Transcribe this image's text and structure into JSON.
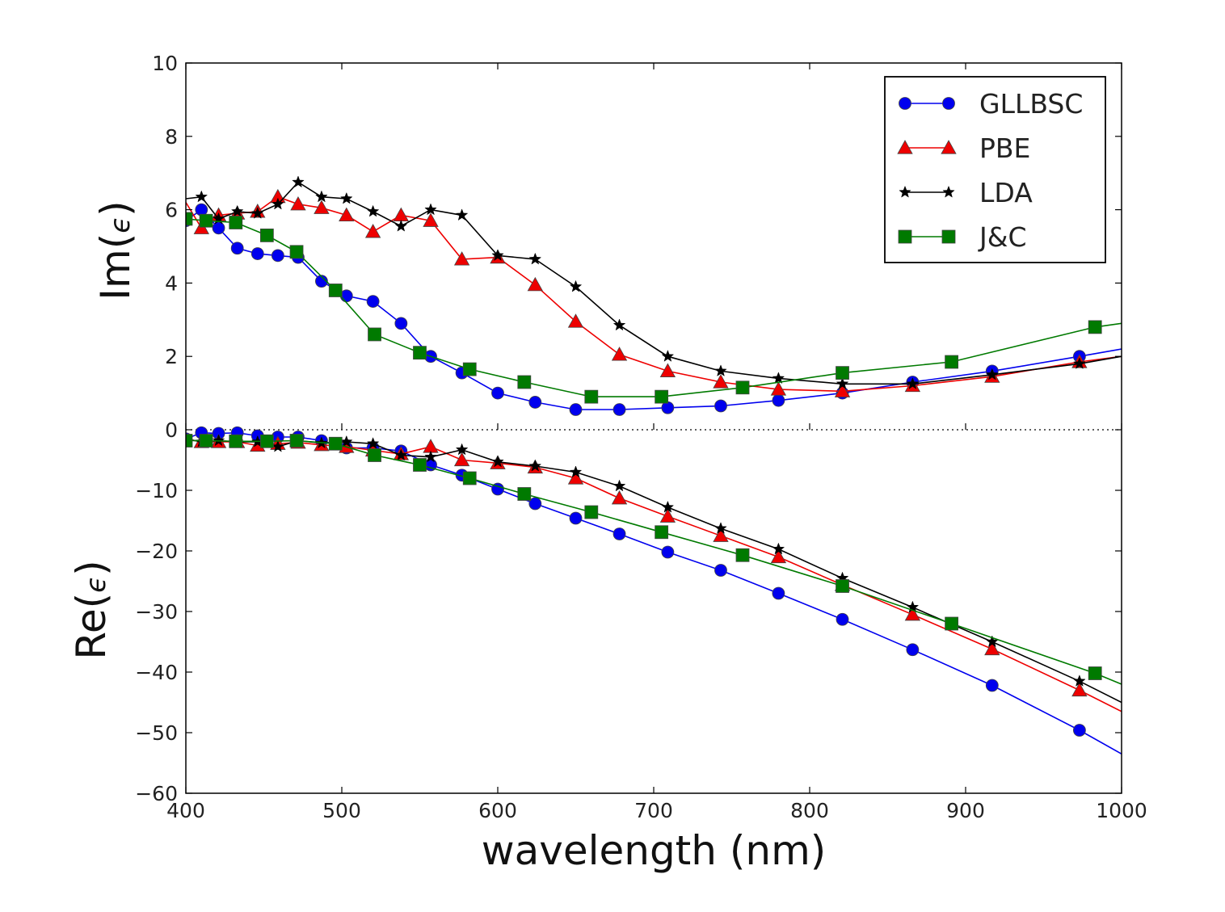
{
  "chart_data": {
    "type": "line",
    "xlabel": "wavelength   (nm)",
    "xlim": [
      400,
      1000
    ],
    "x_ticks": [
      "400",
      "500",
      "600",
      "700",
      "800",
      "900",
      "1000"
    ],
    "panels": [
      {
        "id": "im",
        "ylabel_prefix": "Im(",
        "ylabel_symbol": "ϵ",
        "ylabel_suffix": ")",
        "ylim": [
          0,
          10
        ],
        "y_ticks": [
          "0",
          "2",
          "4",
          "6",
          "8",
          "10"
        ],
        "zero_line": true,
        "series": [
          {
            "name": "GLLBSC",
            "color": "#0000ee",
            "marker": "circle",
            "x": [
              400,
              410,
              421,
              433,
              446,
              459,
              472,
              487,
              503,
              520,
              538,
              557,
              577,
              600,
              624,
              650,
              678,
              709,
              743,
              780,
              821,
              866,
              917,
              973,
              1000
            ],
            "y": [
              5.7,
              6.0,
              5.5,
              4.95,
              4.8,
              4.75,
              4.7,
              4.05,
              3.65,
              3.5,
              2.9,
              2.0,
              1.55,
              1.0,
              0.75,
              0.55,
              0.55,
              0.6,
              0.65,
              0.8,
              1.0,
              1.3,
              1.6,
              2.0,
              2.2
            ]
          },
          {
            "name": "PBE",
            "color": "#ee0000",
            "marker": "triangle",
            "x": [
              400,
              410,
              421,
              433,
              446,
              459,
              472,
              487,
              503,
              520,
              538,
              557,
              577,
              600,
              624,
              650,
              678,
              709,
              743,
              780,
              821,
              866,
              917,
              973,
              1000
            ],
            "y": [
              6.2,
              5.5,
              5.85,
              5.9,
              5.95,
              6.35,
              6.15,
              6.05,
              5.85,
              5.4,
              5.85,
              5.7,
              4.65,
              4.7,
              3.95,
              2.95,
              2.05,
              1.6,
              1.3,
              1.1,
              1.05,
              1.2,
              1.45,
              1.85,
              2.0
            ]
          },
          {
            "name": "LDA",
            "color": "#000000",
            "marker": "star",
            "x": [
              400,
              410,
              421,
              433,
              446,
              459,
              472,
              487,
              503,
              520,
              538,
              557,
              577,
              600,
              624,
              650,
              678,
              709,
              743,
              780,
              821,
              866,
              917,
              973,
              1000
            ],
            "y": [
              6.3,
              6.35,
              5.75,
              5.95,
              5.9,
              6.15,
              6.75,
              6.35,
              6.3,
              5.95,
              5.55,
              6.0,
              5.85,
              4.75,
              4.65,
              3.9,
              2.85,
              2.0,
              1.6,
              1.4,
              1.25,
              1.25,
              1.5,
              1.8,
              2.0
            ]
          },
          {
            "name": "J&C",
            "color": "#007a00",
            "marker": "square",
            "x": [
              400,
              413,
              432,
              452,
              471,
              496,
              521,
              550,
              582,
              617,
              660,
              705,
              757,
              821,
              891,
              983,
              1000
            ],
            "y": [
              5.75,
              5.7,
              5.65,
              5.3,
              4.85,
              3.8,
              2.6,
              2.1,
              1.65,
              1.3,
              0.9,
              0.9,
              1.15,
              1.55,
              1.85,
              2.8,
              2.9
            ]
          }
        ]
      },
      {
        "id": "re",
        "ylabel_prefix": "Re(",
        "ylabel_symbol": "ϵ",
        "ylabel_suffix": ")",
        "ylim": [
          -60,
          0
        ],
        "y_ticks": [
          "−10",
          "−20",
          "−30",
          "−40",
          "−50",
          "−60"
        ],
        "series": [
          {
            "name": "GLLBSC",
            "color": "#0000ee",
            "marker": "circle",
            "x": [
              400,
              410,
              421,
              433,
              446,
              459,
              472,
              487,
              503,
              520,
              538,
              557,
              577,
              600,
              624,
              650,
              678,
              709,
              743,
              780,
              821,
              866,
              917,
              973,
              1000
            ],
            "y": [
              -1.5,
              -0.5,
              -0.6,
              -0.5,
              -1.0,
              -1.2,
              -1.2,
              -1.8,
              -3.0,
              -3.0,
              -3.5,
              -5.8,
              -7.5,
              -9.8,
              -12.2,
              -14.6,
              -17.2,
              -20.2,
              -23.2,
              -27.0,
              -31.3,
              -36.3,
              -42.2,
              -49.6,
              -53.5
            ]
          },
          {
            "name": "PBE",
            "color": "#ee0000",
            "marker": "triangle",
            "x": [
              400,
              410,
              421,
              433,
              446,
              459,
              472,
              487,
              503,
              520,
              538,
              557,
              577,
              600,
              624,
              650,
              678,
              709,
              743,
              780,
              821,
              866,
              917,
              973,
              1000
            ],
            "y": [
              -1.5,
              -2.0,
              -2.0,
              -2.0,
              -2.6,
              -2.3,
              -2.1,
              -2.5,
              -2.8,
              -3.4,
              -4.0,
              -2.8,
              -5.0,
              -5.5,
              -6.2,
              -8.0,
              -11.3,
              -14.3,
              -17.5,
              -21.0,
              -25.6,
              -30.5,
              -36.2,
              -43.0,
              -46.5
            ]
          },
          {
            "name": "LDA",
            "color": "#000000",
            "marker": "star",
            "x": [
              400,
              410,
              421,
              433,
              446,
              459,
              472,
              487,
              503,
              520,
              538,
              557,
              577,
              600,
              624,
              650,
              678,
              709,
              743,
              780,
              821,
              866,
              917,
              973,
              1000
            ],
            "y": [
              -1.5,
              -2.0,
              -1.8,
              -2.0,
              -2.0,
              -2.8,
              -1.8,
              -2.2,
              -2.0,
              -2.3,
              -4.2,
              -4.5,
              -3.3,
              -5.3,
              -6.0,
              -7.0,
              -9.3,
              -12.8,
              -16.3,
              -19.7,
              -24.5,
              -29.3,
              -35.0,
              -41.5,
              -45.0
            ]
          },
          {
            "name": "J&C",
            "color": "#007a00",
            "marker": "square",
            "x": [
              400,
              413,
              432,
              452,
              471,
              496,
              521,
              550,
              582,
              617,
              660,
              705,
              757,
              821,
              891,
              983,
              1000
            ],
            "y": [
              -1.8,
              -1.8,
              -1.9,
              -1.9,
              -1.8,
              -2.3,
              -4.2,
              -5.8,
              -8.0,
              -10.6,
              -13.6,
              -16.9,
              -20.7,
              -25.8,
              -32.0,
              -40.2,
              -42.0
            ]
          }
        ]
      }
    ],
    "legend": {
      "placement": "upper-right",
      "entries": [
        {
          "name": "GLLBSC",
          "color": "#0000ee",
          "marker": "circle"
        },
        {
          "name": "PBE",
          "color": "#ee0000",
          "marker": "triangle"
        },
        {
          "name": "LDA",
          "color": "#000000",
          "marker": "star"
        },
        {
          "name": "J&C",
          "color": "#007a00",
          "marker": "square"
        }
      ]
    }
  }
}
